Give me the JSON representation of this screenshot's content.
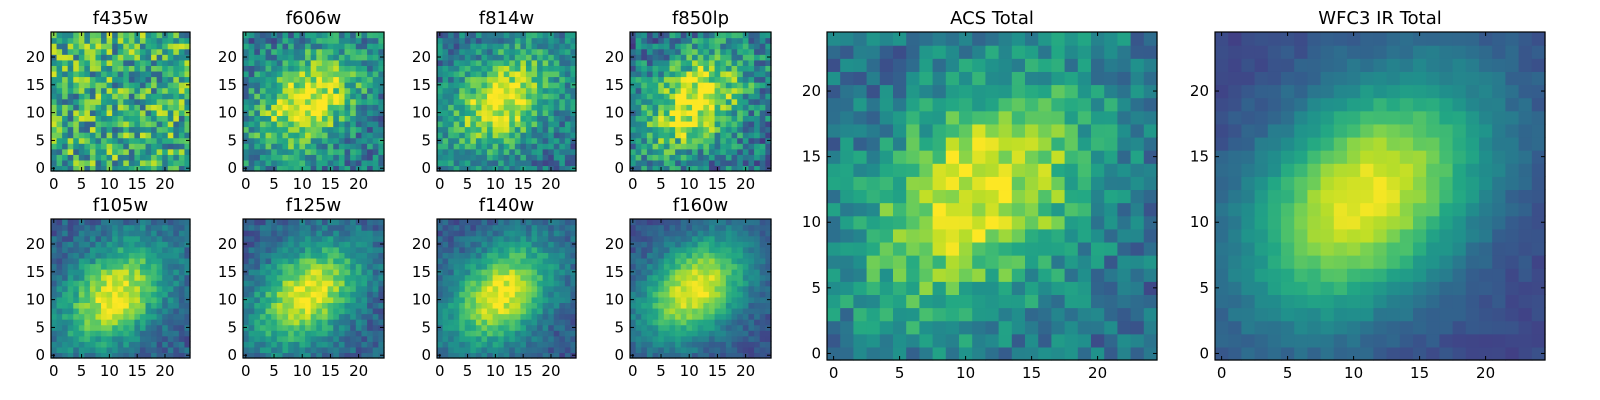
{
  "figure": {
    "description_free": true
  },
  "chart_data": [
    {
      "type": "heatmap",
      "title": "f435w",
      "grid": [
        25,
        25
      ],
      "xlim": [
        0,
        24
      ],
      "ylim": [
        0,
        24
      ],
      "xticks": [
        "0",
        "5",
        "10",
        "15",
        "20"
      ],
      "yticks": [
        "0",
        "5",
        "10",
        "15",
        "20"
      ],
      "colormap": "viridis",
      "pattern": {
        "center": [
          11,
          12
        ],
        "peak": 0.62,
        "background": 0.62,
        "noise": 0.32,
        "seed": 11
      }
    },
    {
      "type": "heatmap",
      "title": "f606w",
      "grid": [
        25,
        25
      ],
      "xlim": [
        0,
        24
      ],
      "ylim": [
        0,
        24
      ],
      "xticks": [
        "0",
        "5",
        "10",
        "15",
        "20"
      ],
      "yticks": [
        "0",
        "5",
        "10",
        "15",
        "20"
      ],
      "colormap": "viridis",
      "pattern": {
        "center": [
          11,
          12
        ],
        "peak": 0.98,
        "background": 0.4,
        "noise": 0.22,
        "seed": 22
      }
    },
    {
      "type": "heatmap",
      "title": "f814w",
      "grid": [
        25,
        25
      ],
      "xlim": [
        0,
        24
      ],
      "ylim": [
        0,
        24
      ],
      "xticks": [
        "0",
        "5",
        "10",
        "15",
        "20"
      ],
      "yticks": [
        "0",
        "5",
        "10",
        "15",
        "20"
      ],
      "colormap": "viridis",
      "pattern": {
        "center": [
          11,
          12
        ],
        "peak": 0.98,
        "background": 0.38,
        "noise": 0.2,
        "seed": 33
      }
    },
    {
      "type": "heatmap",
      "title": "f850lp",
      "grid": [
        25,
        25
      ],
      "xlim": [
        0,
        24
      ],
      "ylim": [
        0,
        24
      ],
      "xticks": [
        "0",
        "5",
        "10",
        "15",
        "20"
      ],
      "yticks": [
        "0",
        "5",
        "10",
        "15",
        "20"
      ],
      "colormap": "viridis",
      "pattern": {
        "center": [
          11,
          12
        ],
        "peak": 0.98,
        "background": 0.38,
        "noise": 0.24,
        "seed": 44
      }
    },
    {
      "type": "heatmap",
      "title": "f105w",
      "grid": [
        25,
        25
      ],
      "xlim": [
        0,
        24
      ],
      "ylim": [
        0,
        24
      ],
      "xticks": [
        "0",
        "5",
        "10",
        "15",
        "20"
      ],
      "yticks": [
        "0",
        "5",
        "10",
        "15",
        "20"
      ],
      "colormap": "viridis",
      "pattern": {
        "center": [
          11,
          11
        ],
        "peak": 0.98,
        "background": 0.3,
        "noise": 0.12,
        "seed": 55
      }
    },
    {
      "type": "heatmap",
      "title": "f125w",
      "grid": [
        25,
        25
      ],
      "xlim": [
        0,
        24
      ],
      "ylim": [
        0,
        24
      ],
      "xticks": [
        "0",
        "5",
        "10",
        "15",
        "20"
      ],
      "yticks": [
        "0",
        "5",
        "10",
        "15",
        "20"
      ],
      "colormap": "viridis",
      "pattern": {
        "center": [
          11,
          11
        ],
        "peak": 0.98,
        "background": 0.3,
        "noise": 0.12,
        "seed": 66
      }
    },
    {
      "type": "heatmap",
      "title": "f140w",
      "grid": [
        25,
        25
      ],
      "xlim": [
        0,
        24
      ],
      "ylim": [
        0,
        24
      ],
      "xticks": [
        "0",
        "5",
        "10",
        "15",
        "20"
      ],
      "yticks": [
        "0",
        "5",
        "10",
        "15",
        "20"
      ],
      "colormap": "viridis",
      "pattern": {
        "center": [
          11,
          11
        ],
        "peak": 0.98,
        "background": 0.28,
        "noise": 0.1,
        "seed": 77
      }
    },
    {
      "type": "heatmap",
      "title": "f160w",
      "grid": [
        25,
        25
      ],
      "xlim": [
        0,
        24
      ],
      "ylim": [
        0,
        24
      ],
      "xticks": [
        "0",
        "5",
        "10",
        "15",
        "20"
      ],
      "yticks": [
        "0",
        "5",
        "10",
        "15",
        "20"
      ],
      "colormap": "viridis",
      "pattern": {
        "center": [
          11,
          12
        ],
        "peak": 0.98,
        "background": 0.26,
        "noise": 0.08,
        "seed": 88
      }
    },
    {
      "type": "heatmap",
      "title": "ACS Total",
      "grid": [
        25,
        25
      ],
      "xlim": [
        0,
        24
      ],
      "ylim": [
        0,
        24
      ],
      "xticks": [
        "0",
        "5",
        "10",
        "15",
        "20"
      ],
      "yticks": [
        "0",
        "5",
        "10",
        "15",
        "20"
      ],
      "colormap": "viridis",
      "pattern": {
        "center": [
          11,
          12
        ],
        "peak": 0.98,
        "background": 0.36,
        "noise": 0.16,
        "seed": 99
      }
    },
    {
      "type": "heatmap",
      "title": "WFC3 IR Total",
      "grid": [
        25,
        25
      ],
      "xlim": [
        0,
        24
      ],
      "ylim": [
        0,
        24
      ],
      "xticks": [
        "0",
        "5",
        "10",
        "15",
        "20"
      ],
      "yticks": [
        "0",
        "5",
        "10",
        "15",
        "20"
      ],
      "colormap": "viridis",
      "pattern": {
        "center": [
          11,
          12
        ],
        "peak": 0.98,
        "background": 0.22,
        "noise": 0.04,
        "seed": 101
      }
    }
  ]
}
